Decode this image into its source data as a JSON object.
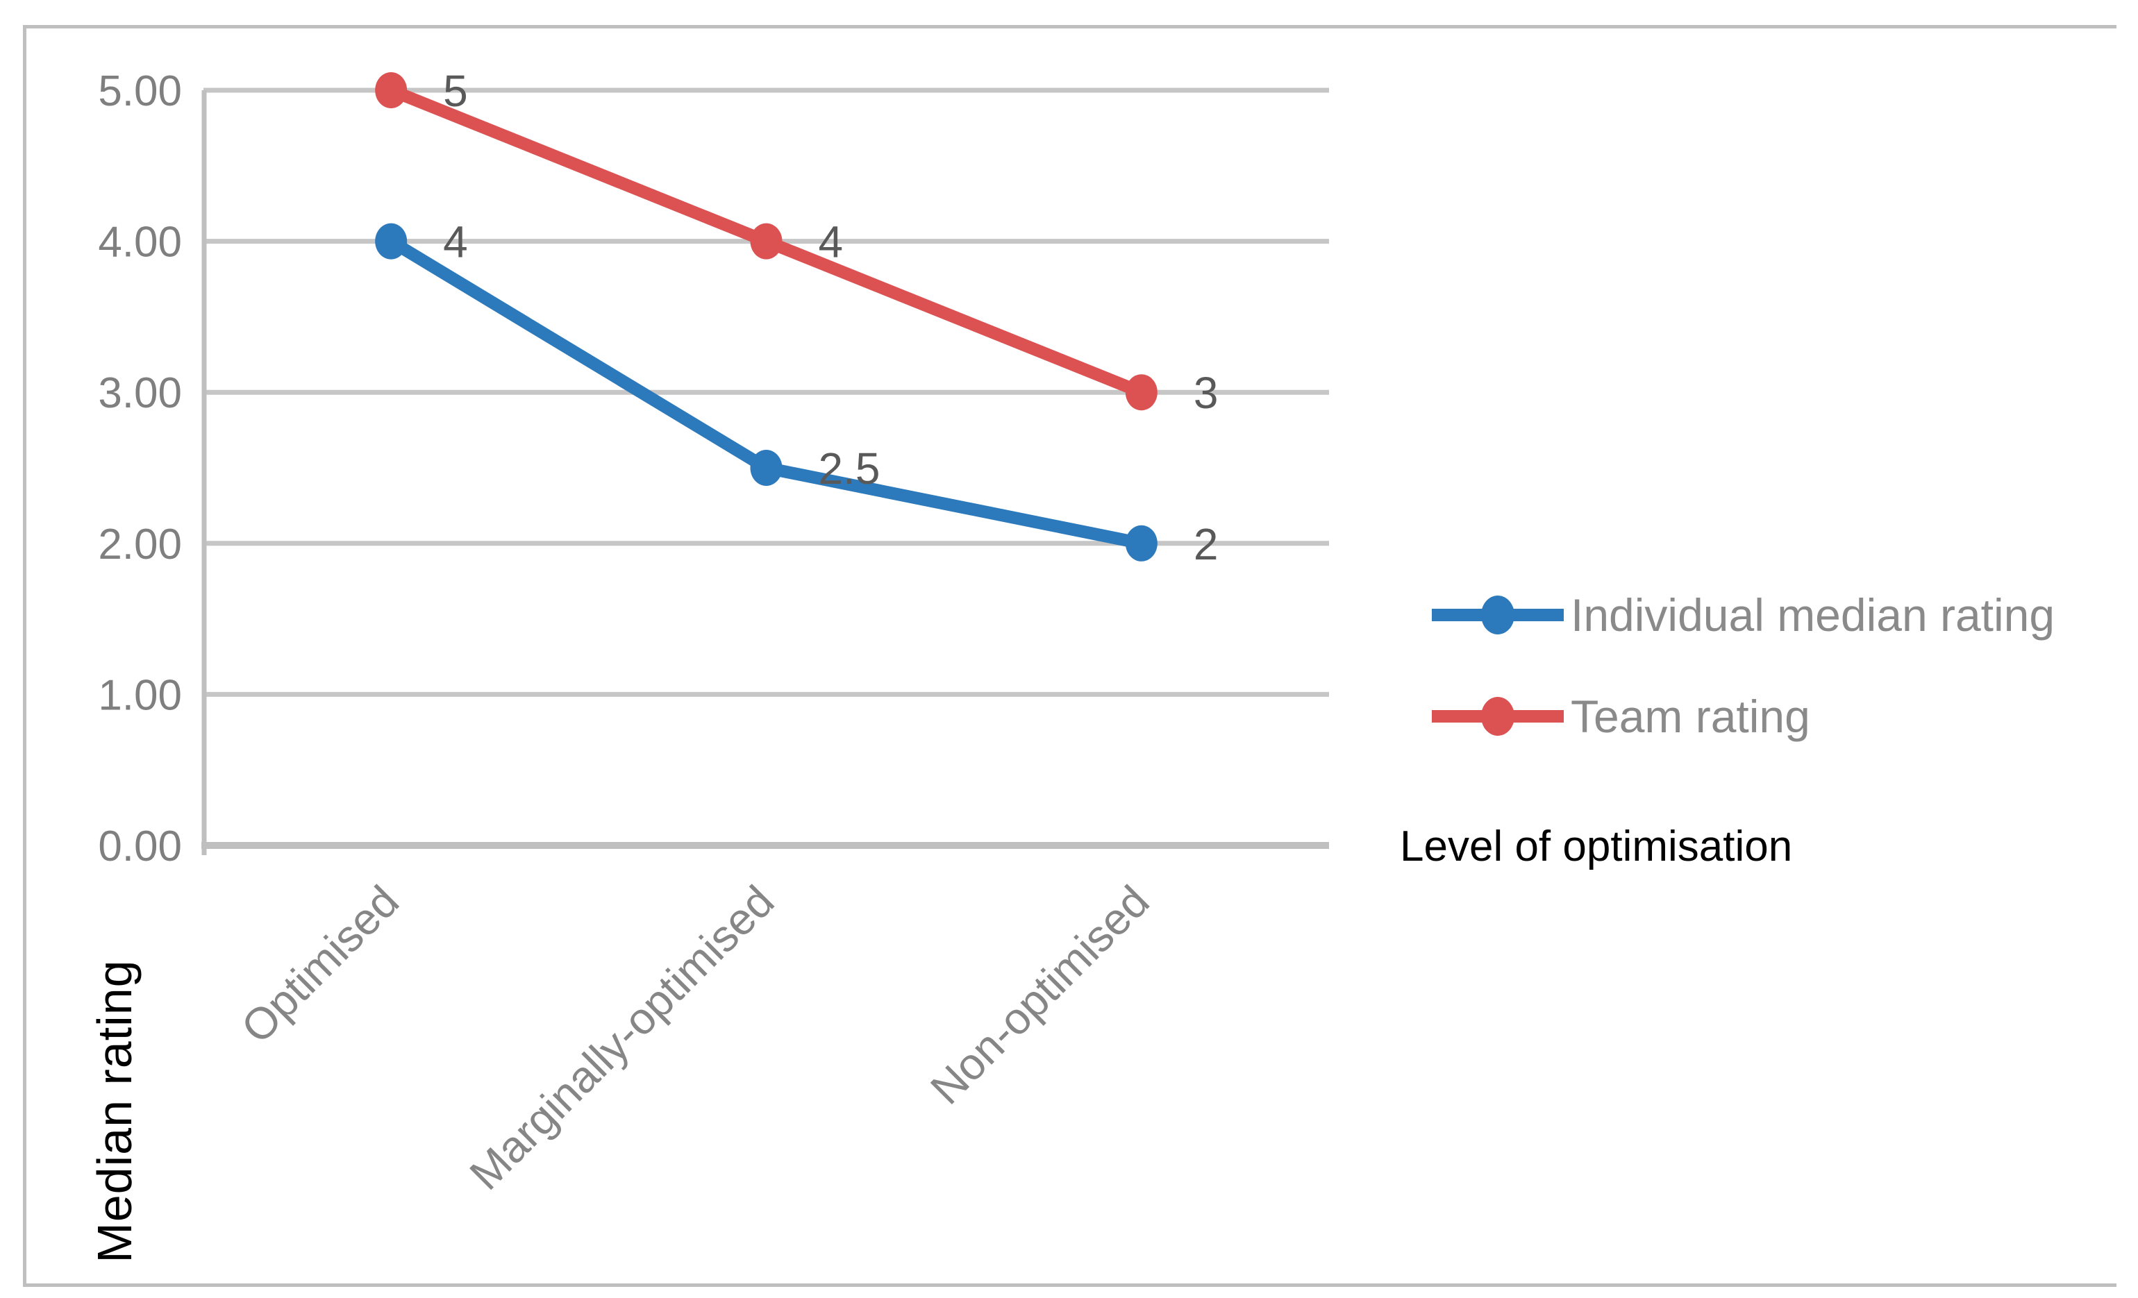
{
  "chart_data": {
    "type": "line",
    "title": "",
    "categories": [
      "Optimised",
      "Marginally-optimised",
      "Non-optimised"
    ],
    "series": [
      {
        "name": "Individual median rating",
        "values": [
          4,
          2.5,
          2
        ],
        "data_labels": [
          "4",
          "2.5",
          "2"
        ],
        "color": "#2c79bc"
      },
      {
        "name": "Team rating",
        "values": [
          5,
          4,
          3
        ],
        "data_labels": [
          "5",
          "4",
          "3"
        ],
        "color": "#dc5252"
      }
    ],
    "xlabel": "Level of optimisation",
    "ylabel": "Median rating",
    "ylim": [
      0,
      5
    ],
    "y_ticks": [
      "0.00",
      "1.00",
      "2.00",
      "3.00",
      "4.00",
      "5.00"
    ],
    "grid": true,
    "legend_position": "right",
    "markers": true,
    "data_labels_shown": true
  },
  "colors": {
    "gridline": "#c6c6c6",
    "axis_line": "#bfbfbf",
    "frame_border": "#bfbfbf",
    "tick_label": "#7f7f7f",
    "category_label": "#868686",
    "data_label": "#595959",
    "legend_text": "#8a8a8a",
    "axis_title": "#000000",
    "background": "#ffffff"
  }
}
